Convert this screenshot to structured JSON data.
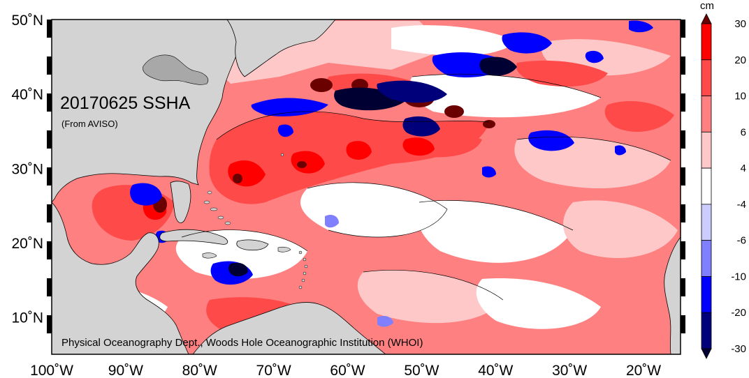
{
  "map": {
    "title": "20170625 SSHA",
    "source": "(From AVISO)",
    "credit": "Physical Oceanography Dept., Woods Hole Oceanographic Institution (WHOI)",
    "x_ticks": [
      {
        "lon": -100,
        "label": "100˚W"
      },
      {
        "lon": -90,
        "label": "90˚W"
      },
      {
        "lon": -80,
        "label": "80˚W"
      },
      {
        "lon": -70,
        "label": "70˚W"
      },
      {
        "lon": -60,
        "label": "60˚W"
      },
      {
        "lon": -50,
        "label": "50˚W"
      },
      {
        "lon": -40,
        "label": "40˚W"
      },
      {
        "lon": -30,
        "label": "30˚W"
      },
      {
        "lon": -20,
        "label": "20˚W"
      }
    ],
    "y_ticks": [
      {
        "lat": 50,
        "label": "50˚N"
      },
      {
        "lat": 40,
        "label": "40˚N"
      },
      {
        "lat": 30,
        "label": "30˚N"
      },
      {
        "lat": 20,
        "label": "20˚N"
      },
      {
        "lat": 10,
        "label": "10˚N"
      }
    ],
    "lon_range": [
      -100,
      -15
    ],
    "lat_range": [
      5,
      50
    ],
    "land_color": "#d3d3d3",
    "colors": {
      "dark_red": "#6b0000",
      "red": "#ff0000",
      "red_mid": "#ff4a4a",
      "red_light": "#ff8080",
      "pink": "#ffc8c8",
      "white": "#ffffff",
      "lavender": "#ccccff",
      "blue_light": "#8080ff",
      "blue": "#0000ff",
      "navy": "#00007a",
      "dark_navy": "#000033"
    }
  },
  "colorbar": {
    "unit": "cm",
    "labels": [
      "30",
      "20",
      "10",
      "6",
      "4",
      "-4",
      "-6",
      "-10",
      "-20",
      "-30"
    ],
    "colors": [
      "#6b0000",
      "#ff0000",
      "#ff4a4a",
      "#ff8080",
      "#ffc8c8",
      "#ffffff",
      "#ccccff",
      "#8080ff",
      "#0000ff",
      "#00007a",
      "#000033"
    ]
  }
}
